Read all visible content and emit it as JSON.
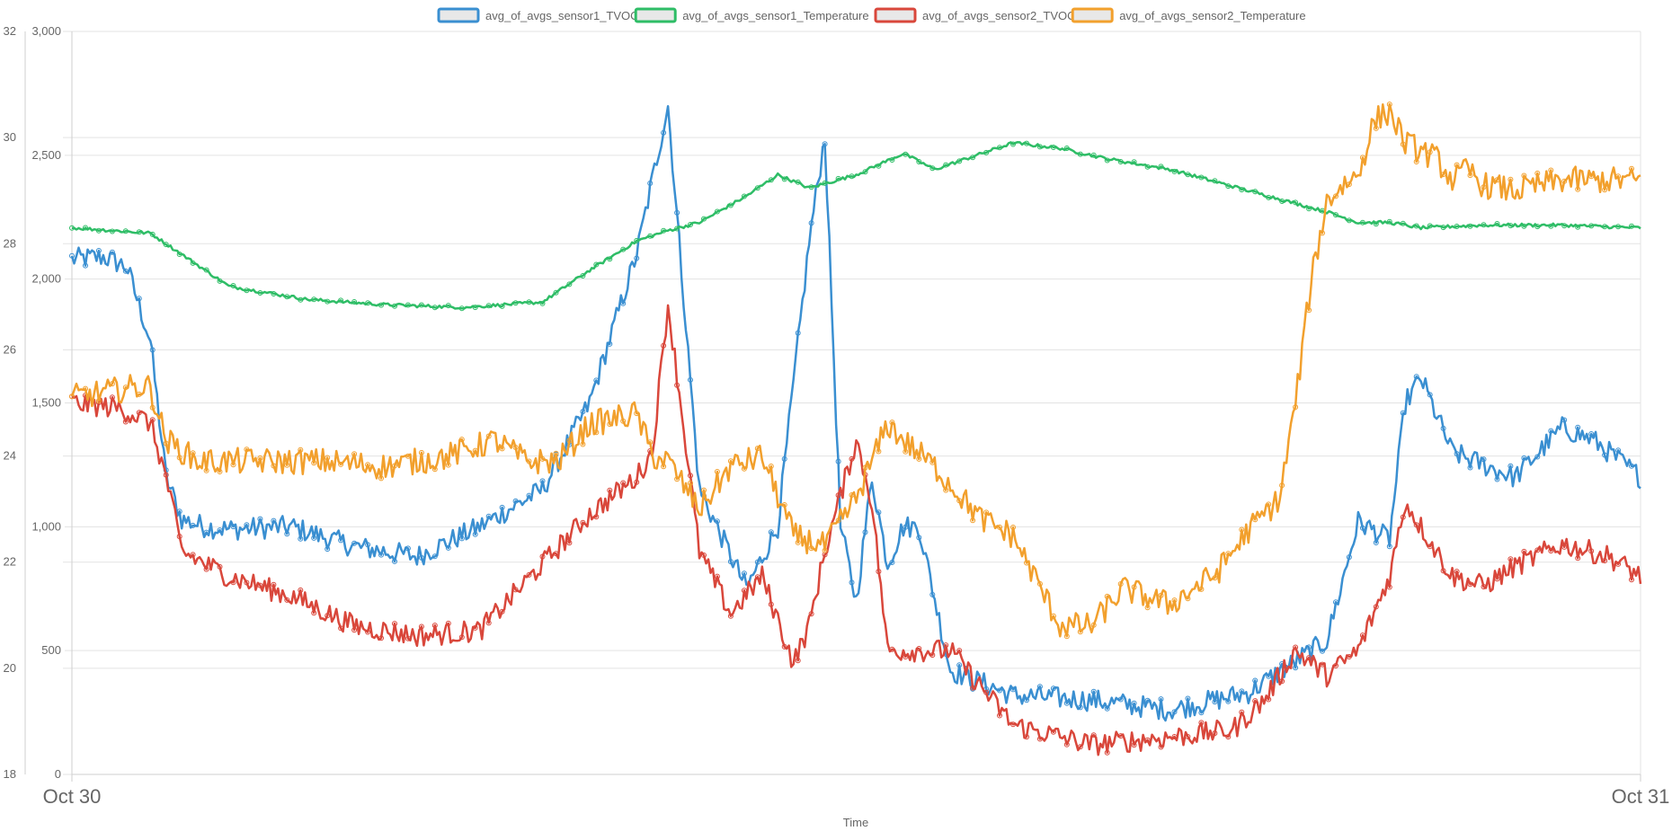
{
  "chart_data": {
    "type": "line",
    "xlabel": "Time",
    "x_ticks": [
      "Oct 30",
      "Oct 31"
    ],
    "x_range": [
      "Oct 30",
      "Oct 31"
    ],
    "y_left": {
      "range": [
        18,
        32
      ],
      "ticks": [
        18,
        20,
        22,
        24,
        26,
        28,
        30,
        32
      ],
      "tick_labels": [
        "18",
        "20",
        "22",
        "24",
        "26",
        "28",
        "30",
        "32"
      ]
    },
    "y_right": {
      "range": [
        0,
        3000
      ],
      "ticks": [
        0,
        500,
        1000,
        1500,
        2000,
        2500,
        3000
      ],
      "tick_labels": [
        "0",
        "500",
        "1,000",
        "1,500",
        "2,000",
        "2,500",
        "3,000"
      ]
    },
    "grid": true,
    "legend_position": "top-center",
    "series": [
      {
        "name": "avg_of_avgs_sensor1_TVOC",
        "color": "#3a8fd1",
        "axis": "right",
        "x": [
          0,
          0.02,
          0.035,
          0.05,
          0.06,
          0.07,
          0.085,
          0.1,
          0.14,
          0.18,
          0.22,
          0.26,
          0.3,
          0.33,
          0.36,
          0.38,
          0.4,
          0.43,
          0.45,
          0.47,
          0.48,
          0.49,
          0.5,
          0.51,
          0.52,
          0.53,
          0.54,
          0.56,
          0.6,
          0.65,
          0.7,
          0.75,
          0.8,
          0.82,
          0.84,
          0.85,
          0.86,
          0.88,
          0.9,
          0.92,
          0.95,
          0.97,
          1.0
        ],
        "values": [
          2080,
          2090,
          2050,
          1750,
          1200,
          1030,
          1000,
          990,
          1000,
          920,
          880,
          1000,
          1150,
          1500,
          2100,
          2700,
          1150,
          750,
          1000,
          2150,
          2580,
          1000,
          700,
          1200,
          850,
          1000,
          1000,
          420,
          320,
          300,
          260,
          330,
          540,
          1020,
          950,
          1500,
          1600,
          1300,
          1250,
          1200,
          1400,
          1350,
          1200
        ]
      },
      {
        "name": "avg_of_avgs_sensor1_Temperature",
        "color": "#2ebd66",
        "axis": "left",
        "x": [
          0,
          0.05,
          0.1,
          0.15,
          0.2,
          0.25,
          0.3,
          0.33,
          0.36,
          0.38,
          0.4,
          0.43,
          0.45,
          0.47,
          0.5,
          0.53,
          0.55,
          0.57,
          0.6,
          0.63,
          0.66,
          0.7,
          0.75,
          0.8,
          0.82,
          0.84,
          0.86,
          0.9,
          0.95,
          1.0
        ],
        "values": [
          28.3,
          28.2,
          27.2,
          26.95,
          26.85,
          26.8,
          26.9,
          27.5,
          28.05,
          28.25,
          28.4,
          28.9,
          29.3,
          29.05,
          29.3,
          29.7,
          29.4,
          29.6,
          29.9,
          29.8,
          29.6,
          29.4,
          29.0,
          28.6,
          28.4,
          28.4,
          28.3,
          28.35,
          28.35,
          28.3
        ]
      },
      {
        "name": "avg_of_avgs_sensor2_TVOC",
        "color": "#d9473b",
        "axis": "right",
        "x": [
          0,
          0.03,
          0.05,
          0.06,
          0.07,
          0.1,
          0.14,
          0.18,
          0.22,
          0.26,
          0.3,
          0.33,
          0.36,
          0.37,
          0.38,
          0.4,
          0.42,
          0.44,
          0.46,
          0.47,
          0.48,
          0.5,
          0.51,
          0.52,
          0.54,
          0.56,
          0.6,
          0.65,
          0.7,
          0.74,
          0.76,
          0.78,
          0.8,
          0.82,
          0.84,
          0.85,
          0.86,
          0.88,
          0.9,
          0.92,
          0.95,
          0.98,
          1.0
        ],
        "values": [
          1500,
          1480,
          1420,
          1200,
          900,
          800,
          720,
          600,
          560,
          580,
          850,
          1050,
          1200,
          1300,
          1900,
          900,
          650,
          800,
          450,
          600,
          900,
          1350,
          1100,
          500,
          500,
          500,
          200,
          120,
          150,
          180,
          300,
          500,
          400,
          500,
          800,
          1100,
          1000,
          800,
          760,
          840,
          930,
          880,
          800
        ]
      },
      {
        "name": "avg_of_avgs_sensor2_Temperature",
        "color": "#f2a02d",
        "axis": "left",
        "x": [
          0,
          0.04,
          0.05,
          0.06,
          0.08,
          0.12,
          0.16,
          0.2,
          0.24,
          0.27,
          0.29,
          0.31,
          0.33,
          0.36,
          0.37,
          0.38,
          0.4,
          0.42,
          0.44,
          0.46,
          0.48,
          0.5,
          0.52,
          0.53,
          0.55,
          0.58,
          0.6,
          0.63,
          0.65,
          0.67,
          0.7,
          0.73,
          0.75,
          0.77,
          0.78,
          0.79,
          0.8,
          0.81,
          0.82,
          0.83,
          0.84,
          0.85,
          0.87,
          0.88,
          0.89,
          0.9,
          0.92,
          0.95,
          1.0
        ],
        "values": [
          25.1,
          25.3,
          25.3,
          24.3,
          23.9,
          23.9,
          23.9,
          23.8,
          24.0,
          24.3,
          23.9,
          23.9,
          24.6,
          24.8,
          24.0,
          23.9,
          23.0,
          23.8,
          24.0,
          22.5,
          22.3,
          23.2,
          24.6,
          24.3,
          23.8,
          22.8,
          22.5,
          20.8,
          20.8,
          21.5,
          21.2,
          21.8,
          22.6,
          23.2,
          25.0,
          27.3,
          28.8,
          29.1,
          29.3,
          30.3,
          30.5,
          29.9,
          29.6,
          29.2,
          29.4,
          29.1,
          29.0,
          29.2,
          29.2
        ]
      }
    ]
  }
}
